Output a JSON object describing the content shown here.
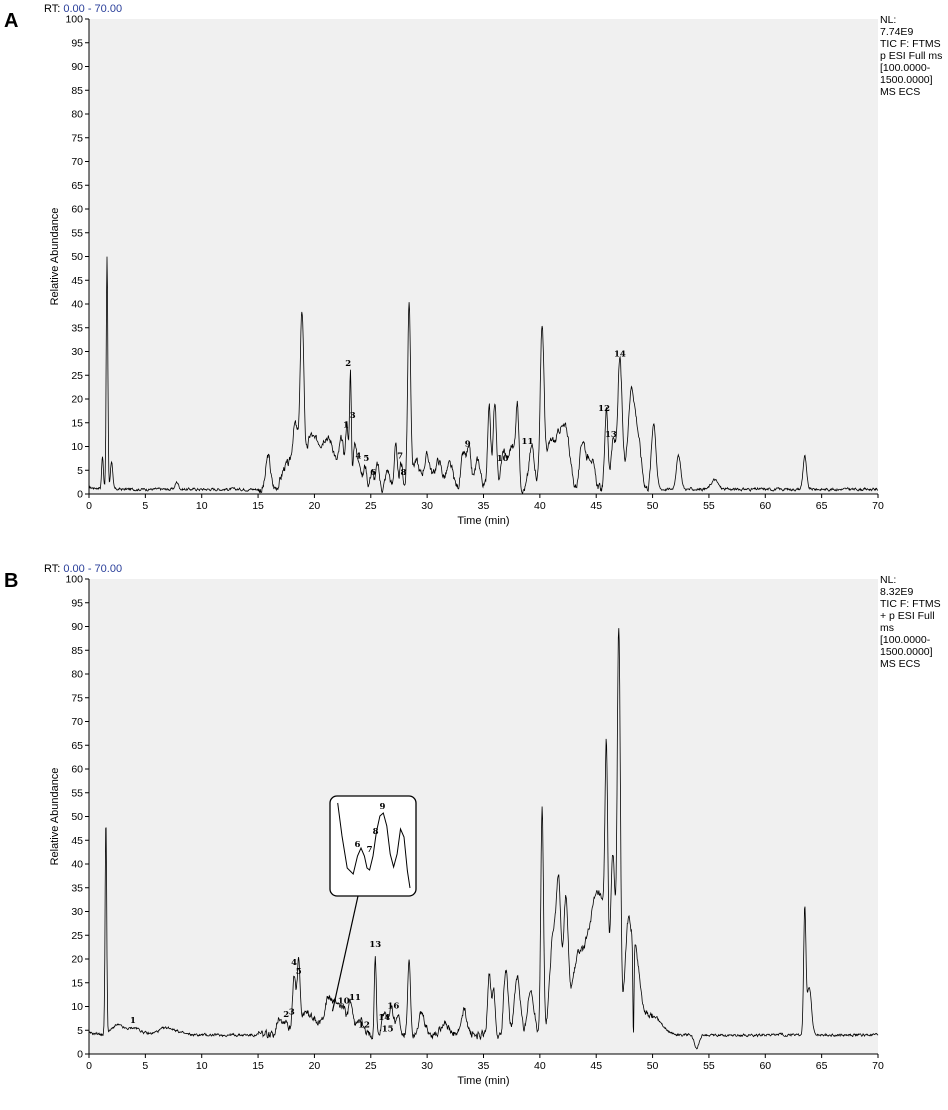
{
  "chart_data": [
    {
      "type": "line",
      "panel_label": "A",
      "rt_label": "RT:",
      "rt_range": "0.00 - 70.00",
      "side_info": [
        "NL:",
        "7.74E9",
        "TIC F: FTMS",
        "p ESI Full ms",
        "[100.0000-",
        "1500.0000]",
        "MS ECS"
      ],
      "xlabel": "Time (min)",
      "ylabel": "Relative Abundance",
      "xlim": [
        0,
        70
      ],
      "ylim": [
        0,
        100
      ],
      "xticks": [
        "0",
        "5",
        "10",
        "15",
        "20",
        "25",
        "30",
        "35",
        "40",
        "45",
        "50",
        "55",
        "60",
        "65",
        "70"
      ],
      "yticks": [
        "0",
        "5",
        "10",
        "15",
        "20",
        "25",
        "30",
        "35",
        "40",
        "45",
        "50",
        "55",
        "60",
        "65",
        "70",
        "75",
        "80",
        "85",
        "90",
        "95",
        "100"
      ],
      "baseline": 1.0,
      "peaks": [
        [
          1.2,
          7,
          0.08
        ],
        [
          1.6,
          49,
          0.07
        ],
        [
          2.0,
          6,
          0.1
        ],
        [
          7.8,
          1.5,
          0.15
        ],
        [
          15.9,
          7,
          0.2
        ],
        [
          17.5,
          5,
          0.4
        ],
        [
          18.3,
          13,
          0.25
        ],
        [
          18.9,
          36,
          0.17
        ],
        [
          19.6,
          10,
          0.3
        ],
        [
          20.3,
          9,
          0.35
        ],
        [
          21.0,
          9,
          0.3
        ],
        [
          21.6,
          8,
          0.3
        ],
        [
          22.4,
          10,
          0.25
        ],
        [
          22.9,
          13,
          0.12
        ],
        [
          23.2,
          24,
          0.08
        ],
        [
          23.6,
          10,
          0.15
        ],
        [
          24.0,
          6,
          0.15
        ],
        [
          24.5,
          5,
          0.15
        ],
        [
          25.1,
          4,
          0.15
        ],
        [
          25.6,
          5,
          0.15
        ],
        [
          26.5,
          4,
          0.2
        ],
        [
          27.2,
          10,
          0.12
        ],
        [
          27.7,
          5,
          0.15
        ],
        [
          28.4,
          39,
          0.13
        ],
        [
          29.0,
          6,
          0.3
        ],
        [
          30.0,
          7,
          0.3
        ],
        [
          31.0,
          6,
          0.3
        ],
        [
          32.0,
          5,
          0.3
        ],
        [
          33.2,
          7,
          0.2
        ],
        [
          33.7,
          8,
          0.2
        ],
        [
          34.5,
          6,
          0.25
        ],
        [
          35.5,
          18,
          0.14
        ],
        [
          36.0,
          18,
          0.14
        ],
        [
          36.8,
          8,
          0.25
        ],
        [
          37.5,
          9,
          0.25
        ],
        [
          38.0,
          17,
          0.15
        ],
        [
          39.3,
          9,
          0.25
        ],
        [
          40.2,
          33,
          0.17
        ],
        [
          41.0,
          10,
          0.4
        ],
        [
          41.8,
          10,
          0.3
        ],
        [
          42.4,
          11,
          0.3
        ],
        [
          43.8,
          10,
          0.25
        ],
        [
          44.5,
          7,
          0.3
        ],
        [
          45.9,
          17,
          0.14
        ],
        [
          46.5,
          10,
          0.2
        ],
        [
          47.1,
          27,
          0.2
        ],
        [
          48.1,
          20,
          0.3
        ],
        [
          48.7,
          10,
          0.3
        ],
        [
          50.1,
          14,
          0.2
        ],
        [
          52.3,
          7,
          0.2
        ],
        [
          55.5,
          2,
          0.3
        ],
        [
          63.5,
          7,
          0.15
        ]
      ],
      "annotations": [
        {
          "text": "1",
          "x": 22.8,
          "y": 14
        },
        {
          "text": "2",
          "x": 23.0,
          "y": 27
        },
        {
          "text": "3",
          "x": 23.4,
          "y": 16
        },
        {
          "text": "4",
          "x": 23.9,
          "y": 7.5
        },
        {
          "text": "5",
          "x": 24.6,
          "y": 7
        },
        {
          "text": "6",
          "x": 25.2,
          "y": 4
        },
        {
          "text": "7",
          "x": 27.6,
          "y": 7.5
        },
        {
          "text": "8",
          "x": 27.9,
          "y": 4
        },
        {
          "text": "9",
          "x": 33.6,
          "y": 10
        },
        {
          "text": "10",
          "x": 36.7,
          "y": 7
        },
        {
          "text": "11",
          "x": 38.9,
          "y": 10.5
        },
        {
          "text": "12",
          "x": 45.7,
          "y": 17.5
        },
        {
          "text": "13",
          "x": 46.3,
          "y": 12
        },
        {
          "text": "14",
          "x": 47.1,
          "y": 29
        }
      ]
    },
    {
      "type": "line",
      "panel_label": "B",
      "rt_label": "RT:",
      "rt_range": "0.00 - 70.00",
      "side_info": [
        "NL:",
        "8.32E9",
        "TIC F: FTMS",
        "+ p ESI Full",
        "ms",
        "[100.0000-",
        "1500.0000]",
        "MS ECS"
      ],
      "xlabel": "Time (min)",
      "ylabel": "Relative Abundance",
      "xlim": [
        0,
        70
      ],
      "ylim": [
        0,
        100
      ],
      "xticks": [
        "0",
        "5",
        "10",
        "15",
        "20",
        "25",
        "30",
        "35",
        "40",
        "45",
        "50",
        "55",
        "60",
        "65",
        "70"
      ],
      "yticks": [
        "0",
        "5",
        "10",
        "15",
        "20",
        "25",
        "30",
        "35",
        "40",
        "45",
        "50",
        "55",
        "60",
        "65",
        "70",
        "75",
        "80",
        "85",
        "90",
        "95",
        "100"
      ],
      "baseline": 4.0,
      "peaks": [
        [
          1.5,
          45,
          0.07
        ],
        [
          2.5,
          2,
          0.5
        ],
        [
          4.0,
          1.5,
          0.6
        ],
        [
          7.0,
          1.5,
          0.8
        ],
        [
          16.9,
          4,
          0.25
        ],
        [
          17.5,
          3,
          0.2
        ],
        [
          18.2,
          13,
          0.15
        ],
        [
          18.6,
          15,
          0.12
        ],
        [
          19.2,
          5,
          0.3
        ],
        [
          20.0,
          4,
          0.3
        ],
        [
          21.0,
          5,
          0.3
        ],
        [
          21.5,
          6,
          0.3
        ],
        [
          22.1,
          6,
          0.25
        ],
        [
          22.6,
          5,
          0.2
        ],
        [
          23.2,
          7,
          0.2
        ],
        [
          24.0,
          4,
          0.25
        ],
        [
          25.4,
          17,
          0.09
        ],
        [
          26.2,
          5,
          0.2
        ],
        [
          26.8,
          6,
          0.2
        ],
        [
          27.4,
          4,
          0.2
        ],
        [
          28.4,
          16,
          0.12
        ],
        [
          29.5,
          4,
          0.3
        ],
        [
          31.5,
          3,
          0.3
        ],
        [
          33.3,
          5,
          0.25
        ],
        [
          35.5,
          13,
          0.14
        ],
        [
          35.9,
          10,
          0.14
        ],
        [
          37.0,
          14,
          0.2
        ],
        [
          38.0,
          12,
          0.25
        ],
        [
          39.2,
          9,
          0.3
        ],
        [
          40.2,
          48,
          0.12
        ],
        [
          41.2,
          22,
          0.3
        ],
        [
          41.7,
          27,
          0.2
        ],
        [
          42.3,
          27,
          0.2
        ],
        [
          43.3,
          14,
          0.5
        ],
        [
          44.5,
          18,
          0.6
        ],
        [
          45.5,
          23,
          0.6
        ],
        [
          45.9,
          42,
          0.12
        ],
        [
          46.5,
          32,
          0.18
        ],
        [
          47.0,
          84,
          0.14
        ],
        [
          47.8,
          20,
          0.3
        ],
        [
          48.5,
          16,
          0.4
        ],
        [
          50.0,
          4,
          0.8
        ],
        [
          63.5,
          26,
          0.1
        ],
        [
          63.9,
          10,
          0.2
        ]
      ],
      "dips": [
        [
          48.3,
          -20,
          0.05
        ],
        [
          53.9,
          -3,
          0.2
        ]
      ],
      "annotations": [
        {
          "text": "1",
          "x": 3.9,
          "y": 6.5
        },
        {
          "text": "2",
          "x": 17.5,
          "y": 7.8
        },
        {
          "text": "3",
          "x": 18.0,
          "y": 8.3
        },
        {
          "text": "4",
          "x": 18.2,
          "y": 18.7
        },
        {
          "text": "5",
          "x": 18.6,
          "y": 16.8
        },
        {
          "text": "10",
          "x": 22.6,
          "y": 10.6
        },
        {
          "text": "11",
          "x": 23.6,
          "y": 11.4
        },
        {
          "text": "12",
          "x": 24.4,
          "y": 5.6
        },
        {
          "text": "13",
          "x": 25.4,
          "y": 22.5
        },
        {
          "text": "14",
          "x": 26.2,
          "y": 7.2
        },
        {
          "text": "15",
          "x": 26.5,
          "y": 4.7
        },
        {
          "text": "16",
          "x": 27.0,
          "y": 9.6
        }
      ],
      "inset": {
        "labels": [
          {
            "text": "6",
            "x": 0.32,
            "y": 0.51
          },
          {
            "text": "7",
            "x": 0.46,
            "y": 0.56
          },
          {
            "text": "8",
            "x": 0.53,
            "y": 0.38
          },
          {
            "text": "9",
            "x": 0.61,
            "y": 0.13
          }
        ],
        "curve": [
          [
            0.09,
            0.07
          ],
          [
            0.14,
            0.4
          ],
          [
            0.2,
            0.72
          ],
          [
            0.27,
            0.78
          ],
          [
            0.32,
            0.6
          ],
          [
            0.36,
            0.52
          ],
          [
            0.4,
            0.6
          ],
          [
            0.43,
            0.72
          ],
          [
            0.46,
            0.74
          ],
          [
            0.5,
            0.6
          ],
          [
            0.54,
            0.36
          ],
          [
            0.58,
            0.2
          ],
          [
            0.62,
            0.17
          ],
          [
            0.66,
            0.3
          ],
          [
            0.7,
            0.58
          ],
          [
            0.74,
            0.71
          ],
          [
            0.78,
            0.58
          ],
          [
            0.82,
            0.33
          ],
          [
            0.86,
            0.41
          ],
          [
            0.9,
            0.75
          ],
          [
            0.93,
            0.92
          ]
        ],
        "pointer_to": {
          "x": 21.6,
          "y": 9
        }
      }
    }
  ]
}
